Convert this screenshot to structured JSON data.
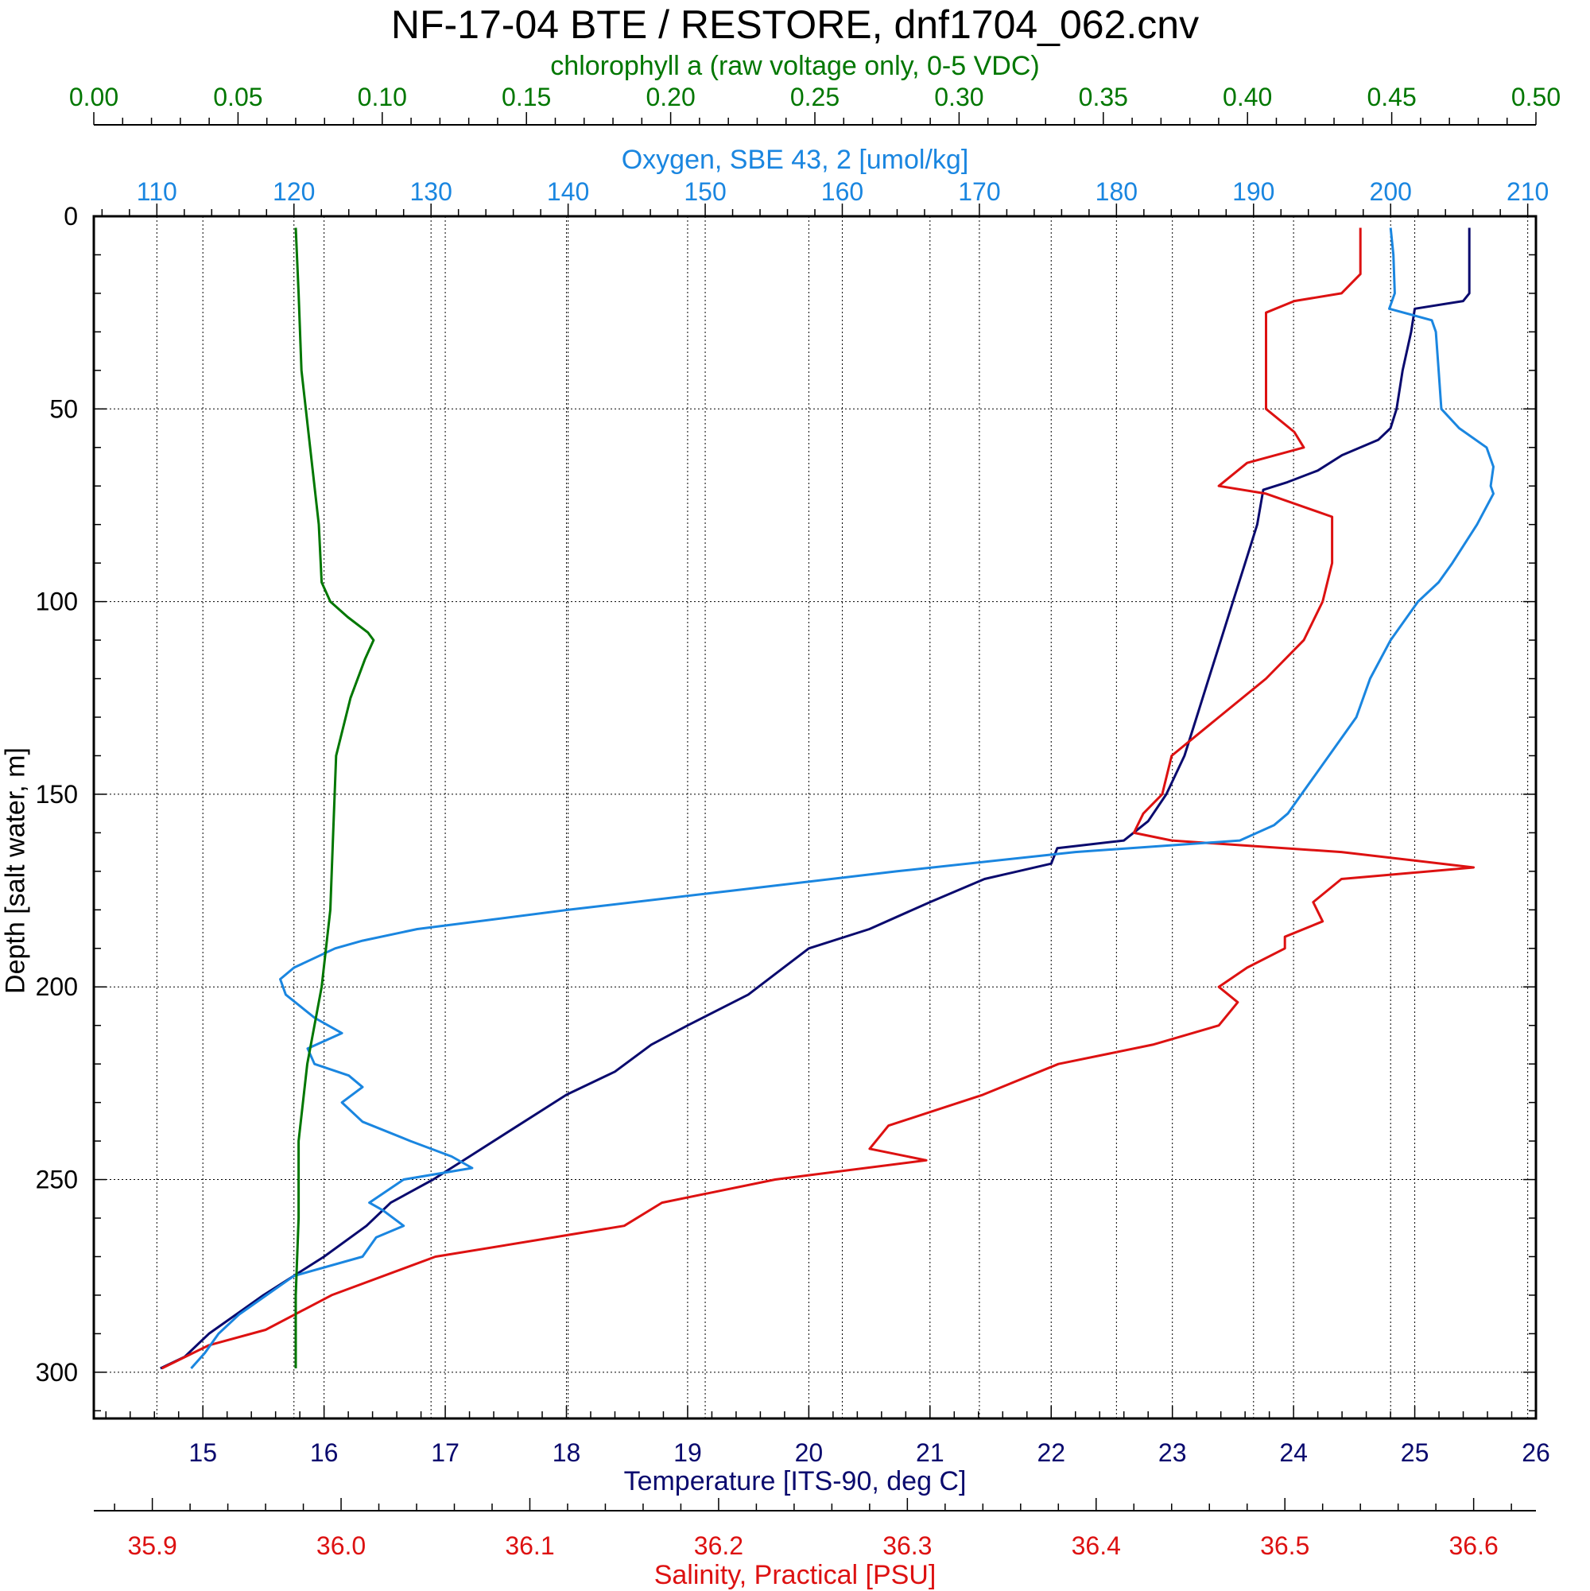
{
  "chart_data": {
    "type": "line",
    "title": "NF-17-04 BTE / RESTORE, dnf1704_062.cnv",
    "grid": true,
    "y_axis": {
      "label": "Depth [salt water, m]",
      "range": [
        0,
        312
      ],
      "inverted": true,
      "ticks": [
        "0",
        "50",
        "100",
        "150",
        "200",
        "250",
        "300"
      ]
    },
    "axes": {
      "chlorophyll": {
        "label": "chlorophyll a (raw voltage only, 0-5 VDC)",
        "color": "#007700",
        "range": [
          0.0,
          0.5
        ],
        "position": "top",
        "ticks": [
          "0.00",
          "0.05",
          "0.10",
          "0.15",
          "0.20",
          "0.25",
          "0.30",
          "0.35",
          "0.40",
          "0.45",
          "0.50"
        ]
      },
      "oxygen": {
        "label": "Oxygen, SBE 43, 2 [umol/kg]",
        "color": "#1a86e0",
        "range": [
          105.4,
          210.6
        ],
        "position": "top",
        "ticks": [
          "110",
          "120",
          "130",
          "140",
          "150",
          "160",
          "170",
          "180",
          "190",
          "200",
          "210"
        ]
      },
      "temperature": {
        "label": "Temperature [ITS-90, deg C]",
        "color": "#0a0a6e",
        "range": [
          14.1,
          26.0
        ],
        "position": "bottom",
        "ticks": [
          "15",
          "16",
          "17",
          "18",
          "19",
          "20",
          "21",
          "22",
          "23",
          "24",
          "25",
          "26"
        ]
      },
      "salinity": {
        "label": "Salinity, Practical [PSU]",
        "color": "#dd1111",
        "range": [
          35.869,
          36.633
        ],
        "position": "bottom",
        "ticks": [
          "35.9",
          "36.0",
          "36.1",
          "36.2",
          "36.3",
          "36.4",
          "36.5",
          "36.6"
        ]
      }
    },
    "series": [
      {
        "name": "Temperature",
        "axis": "temperature",
        "color": "#0a0a6e",
        "depth": [
          3,
          20,
          22,
          24,
          30,
          40,
          50,
          55,
          58,
          62,
          66,
          69,
          71,
          80,
          90,
          100,
          110,
          120,
          130,
          140,
          150,
          157,
          162,
          164,
          168,
          172,
          178,
          185,
          190,
          196,
          202,
          210,
          215,
          222,
          228,
          236,
          244,
          250,
          256,
          262,
          270,
          280,
          290,
          296,
          299
        ],
        "values": [
          25.45,
          25.45,
          25.4,
          25.0,
          24.97,
          24.9,
          24.85,
          24.8,
          24.7,
          24.4,
          24.2,
          23.95,
          23.75,
          23.7,
          23.6,
          23.5,
          23.4,
          23.3,
          23.2,
          23.1,
          22.95,
          22.8,
          22.6,
          22.05,
          22.0,
          21.45,
          21.0,
          20.5,
          20.0,
          19.75,
          19.5,
          19.0,
          18.7,
          18.4,
          18.0,
          17.6,
          17.2,
          16.9,
          16.55,
          16.35,
          16.0,
          15.5,
          15.05,
          14.85,
          14.65
        ]
      },
      {
        "name": "Salinity",
        "axis": "salinity",
        "color": "#dd1111",
        "depth": [
          3,
          15,
          20,
          22,
          25,
          30,
          50,
          56,
          60,
          64,
          70,
          72,
          78,
          90,
          100,
          110,
          120,
          130,
          140,
          150,
          155,
          160,
          162,
          165,
          169,
          172,
          178,
          183,
          187,
          190,
          195,
          200,
          204,
          210,
          215,
          220,
          228,
          236,
          242,
          245,
          250,
          256,
          262,
          270,
          280,
          289,
          293,
          299
        ],
        "values": [
          36.54,
          36.54,
          36.53,
          36.505,
          36.49,
          36.49,
          36.49,
          36.505,
          36.51,
          36.48,
          36.465,
          36.49,
          36.525,
          36.525,
          36.52,
          36.51,
          36.49,
          36.465,
          36.44,
          36.435,
          36.425,
          36.42,
          36.44,
          36.53,
          36.6,
          36.53,
          36.515,
          36.52,
          36.5,
          36.5,
          36.48,
          36.465,
          36.475,
          36.465,
          36.43,
          36.38,
          36.34,
          36.29,
          36.28,
          36.31,
          36.23,
          36.17,
          36.15,
          36.05,
          35.995,
          35.96,
          35.93,
          35.905
        ]
      },
      {
        "name": "Oxygen",
        "axis": "oxygen",
        "color": "#1a86e0",
        "depth": [
          3,
          10,
          20,
          24,
          27,
          30,
          40,
          50,
          55,
          60,
          65,
          70,
          72,
          80,
          90,
          95,
          100,
          110,
          120,
          130,
          140,
          150,
          155,
          158,
          162,
          165,
          170,
          175,
          180,
          185,
          188,
          190,
          195,
          198,
          202,
          208,
          212,
          216,
          220,
          223,
          226,
          230,
          235,
          240,
          244,
          247,
          250,
          256,
          258,
          262,
          265,
          270,
          275,
          280,
          285,
          290,
          295,
          299
        ],
        "values": [
          200.0,
          200.2,
          200.3,
          199.9,
          203.0,
          203.3,
          203.5,
          203.7,
          205.0,
          207.0,
          207.5,
          207.3,
          207.5,
          206.3,
          204.5,
          203.5,
          202.0,
          200.0,
          198.5,
          197.5,
          195.5,
          193.5,
          192.5,
          191.5,
          189.0,
          177.0,
          164.0,
          152.0,
          140.0,
          129.0,
          125.0,
          123.0,
          120.0,
          119.0,
          119.4,
          121.5,
          123.5,
          121.0,
          121.5,
          124.0,
          125.0,
          123.5,
          125.0,
          128.5,
          131.5,
          133.0,
          128.0,
          125.5,
          126.5,
          128.0,
          126.0,
          125.0,
          120.0,
          118.0,
          116.0,
          114.5,
          113.5,
          112.5
        ]
      },
      {
        "name": "Chlorophyll",
        "axis": "chlorophyll",
        "color": "#007700",
        "depth": [
          3,
          20,
          40,
          60,
          80,
          95,
          100,
          104,
          108,
          110,
          115,
          125,
          140,
          160,
          180,
          200,
          220,
          240,
          260,
          280,
          299
        ],
        "values": [
          0.07,
          0.071,
          0.072,
          0.075,
          0.078,
          0.079,
          0.082,
          0.088,
          0.095,
          0.097,
          0.094,
          0.089,
          0.084,
          0.083,
          0.082,
          0.079,
          0.074,
          0.071,
          0.071,
          0.07,
          0.07
        ]
      }
    ]
  }
}
